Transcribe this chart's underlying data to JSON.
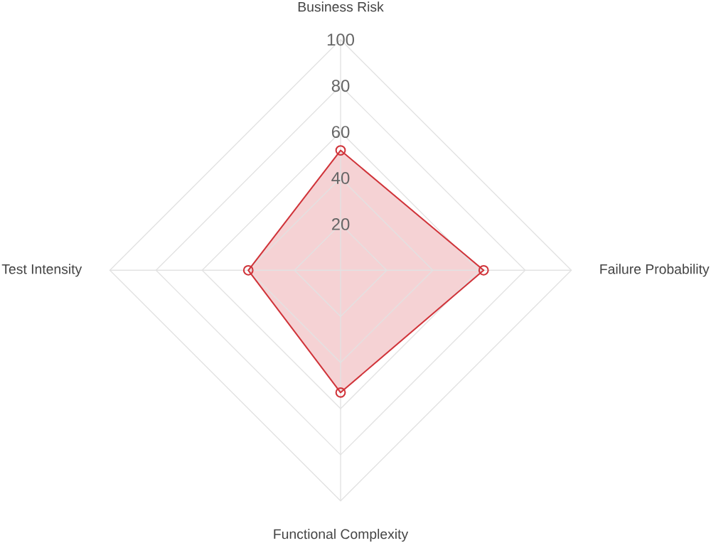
{
  "chart_data": {
    "type": "radar",
    "categories": [
      "Business Risk",
      "Failure Probability",
      "Functional Complexity",
      "Test Intensity"
    ],
    "series": [
      {
        "color": "#d0343a",
        "values": [
          52,
          62,
          53,
          40
        ]
      }
    ],
    "ylim": [
      0,
      100
    ],
    "yticks": [
      20,
      40,
      60,
      80,
      100
    ],
    "grid": true,
    "marker": "circle"
  }
}
